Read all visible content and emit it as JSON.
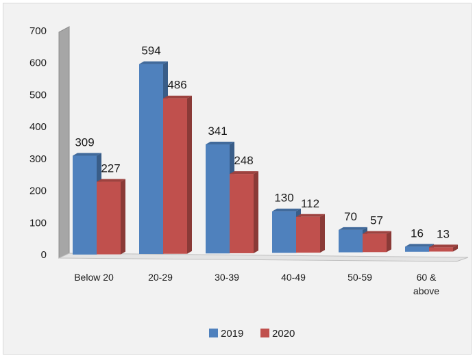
{
  "chart_data": {
    "type": "bar",
    "title": "",
    "xlabel": "",
    "ylabel": "",
    "ylim": [
      0,
      700
    ],
    "yticks": [
      0,
      100,
      200,
      300,
      400,
      500,
      600,
      700
    ],
    "categories": [
      [
        "Below 20"
      ],
      [
        "20-29"
      ],
      [
        "30-39"
      ],
      [
        "40-49"
      ],
      [
        "50-59"
      ],
      [
        "60 &",
        "above"
      ]
    ],
    "series": [
      {
        "name": "2019",
        "values": [
          309,
          594,
          341,
          130,
          70,
          16
        ],
        "color": "#4f81bd"
      },
      {
        "name": "2020",
        "values": [
          227,
          486,
          248,
          112,
          57,
          13
        ],
        "color": "#c0504d"
      }
    ],
    "legend": "bottom",
    "grid": false,
    "style": "3d-clustered-column"
  }
}
